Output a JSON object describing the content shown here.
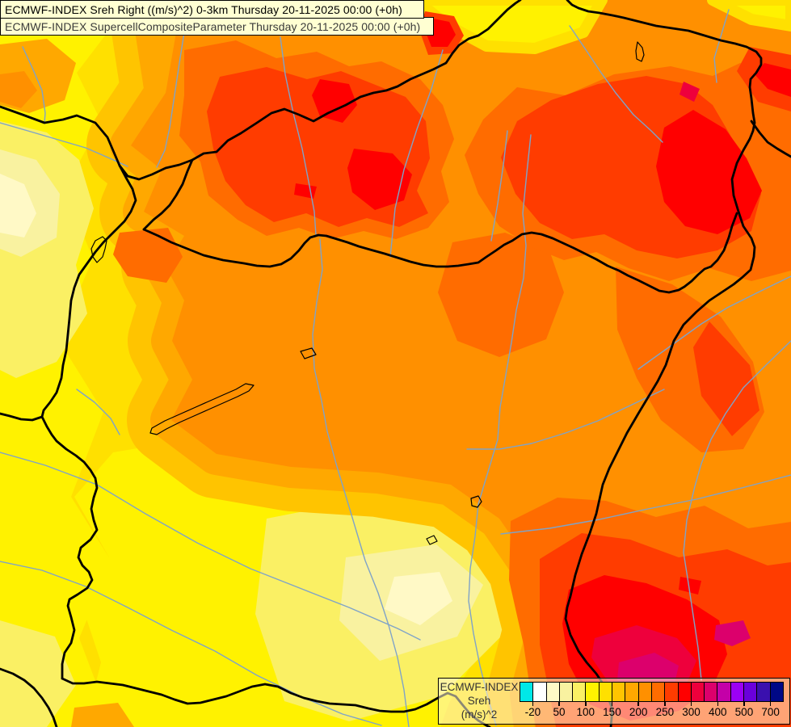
{
  "header": {
    "line1": "ECMWF-INDEX Sreh Right ((m/s)^2) 0-3km Thursday 20-11-2025 00:00 (+0h)",
    "line2": "ECMWF-INDEX SupercellCompositeParameter Thursday 20-11-2025 00:00 (+0h)"
  },
  "legend": {
    "product": "ECMWF-INDEX",
    "parameter": "Sreh",
    "units": "(m/s)^2",
    "tick_labels": [
      "-20",
      "50",
      "100",
      "150",
      "200",
      "250",
      "300",
      "400",
      "500",
      "700"
    ],
    "palette": [
      "#00E8E8",
      "#FFFFFF",
      "#FFF9C6",
      "#F9F2A0",
      "#FAF064",
      "#FFF200",
      "#FFE000",
      "#FFC400",
      "#FFA800",
      "#FF9000",
      "#FF6C00",
      "#FF3C00",
      "#FF0000",
      "#EE003C",
      "#DC006C",
      "#C400A8",
      "#9C00F4",
      "#6A00DC",
      "#3A10AE",
      "#000886"
    ]
  },
  "map": {
    "border_color": "#000000",
    "river_color": "#7FA3C8",
    "lake_outline_color": "#000000"
  }
}
